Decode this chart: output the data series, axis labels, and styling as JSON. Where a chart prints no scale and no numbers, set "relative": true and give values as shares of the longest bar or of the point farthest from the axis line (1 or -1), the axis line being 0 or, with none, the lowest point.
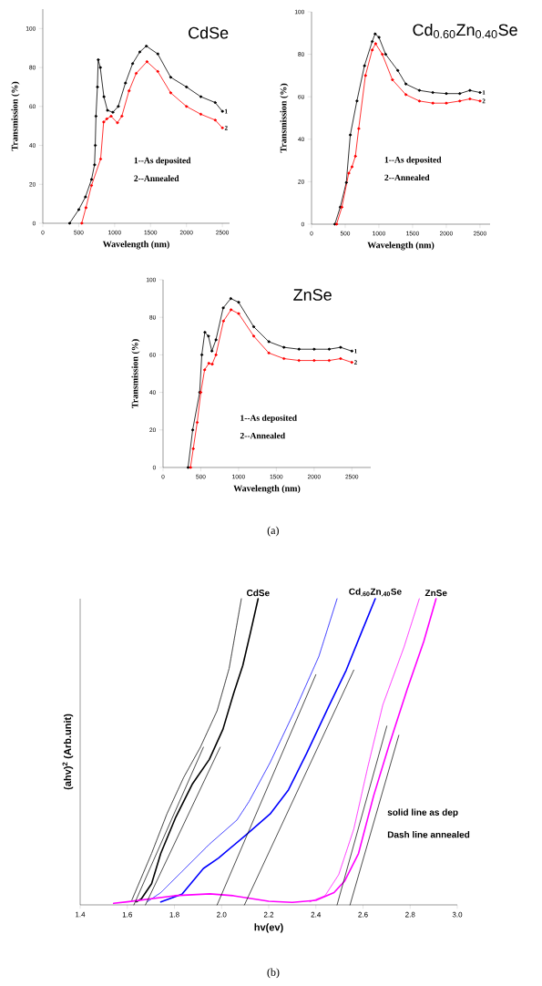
{
  "chart_data": [
    {
      "type": "line",
      "title": "CdSe",
      "xlabel": "Wavelength (nm)",
      "ylabel": "Transmission (%)",
      "marker": "circle",
      "line_style": "solid",
      "xlim": [
        0,
        2600
      ],
      "ylim": [
        0,
        110
      ],
      "xticks": [
        0,
        500,
        1000,
        1500,
        2000,
        2500
      ],
      "yticks": [
        0,
        20,
        40,
        60,
        80,
        100
      ],
      "annotations": [
        "1--As deposited",
        "2--Annealed"
      ],
      "series": [
        {
          "name": "1",
          "color": "#000000",
          "x": [
            373,
            500,
            593,
            678,
            720,
            730,
            740,
            760,
            771,
            800,
            850,
            900,
            975,
            1050,
            1150,
            1250,
            1350,
            1441,
            1600,
            1780,
            2000,
            2200,
            2400,
            2500
          ],
          "values": [
            0,
            7,
            13.5,
            22.5,
            30,
            40,
            55,
            70,
            84,
            80,
            65,
            58,
            57,
            60,
            72,
            82,
            88,
            91,
            87,
            75,
            70,
            65,
            62,
            57.5
          ]
        },
        {
          "name": "2",
          "color": "#ff0000",
          "x": [
            542,
            600,
            678,
            805,
            847,
            890,
            950,
            1038,
            1100,
            1200,
            1300,
            1450,
            1600,
            1780,
            2000,
            2200,
            2400,
            2500
          ],
          "values": [
            0,
            8,
            19.4,
            33,
            52,
            53.6,
            55,
            51.6,
            55,
            68,
            77,
            83,
            78,
            67,
            60,
            56,
            53,
            49
          ]
        }
      ]
    },
    {
      "type": "line",
      "title": "Cd$_{0.60}$Zn$_{0.40}$Se",
      "xlabel": "Wavelength (nm)",
      "ylabel": "Transmission (%)",
      "marker": "circle",
      "line_style": "solid",
      "xlim": [
        0,
        2650
      ],
      "ylim": [
        0,
        100
      ],
      "xticks": [
        0,
        500,
        1000,
        1500,
        2000,
        2500
      ],
      "yticks": [
        0,
        20,
        40,
        60,
        80,
        100
      ],
      "annotations": [
        "1--As deposited",
        "2--Annealed"
      ],
      "series": [
        {
          "name": "1",
          "color": "#000000",
          "x": [
            346,
            426,
            516,
            575,
            673,
            785,
            900,
            943,
            1000,
            1100,
            1279,
            1400,
            1600,
            1800,
            2000,
            2200,
            2350,
            2500
          ],
          "values": [
            0,
            8,
            19.6,
            42,
            58,
            74.6,
            86,
            89.6,
            88,
            80,
            72.4,
            66,
            63,
            62,
            61.5,
            61.5,
            63,
            62
          ]
        },
        {
          "name": "2",
          "color": "#ff0000",
          "x": [
            372,
            450,
            552,
            600,
            651,
            700,
            800,
            900,
            950,
            1050,
            1200,
            1400,
            1600,
            1800,
            2000,
            2200,
            2350,
            2500
          ],
          "values": [
            0,
            8,
            24,
            27,
            32,
            45,
            70,
            82,
            85,
            80,
            68,
            61,
            58,
            57,
            57,
            58,
            59,
            58
          ]
        }
      ]
    },
    {
      "type": "line",
      "title": "ZnSe",
      "xlabel": "Wavelength (nm)",
      "ylabel": "Transmission (%)",
      "marker": "circle",
      "line_style": "solid",
      "xlim": [
        0,
        2750
      ],
      "ylim": [
        0,
        100
      ],
      "xticks": [
        0,
        500,
        1000,
        1500,
        2000,
        2500
      ],
      "yticks": [
        0,
        20,
        40,
        60,
        80,
        100
      ],
      "annotations": [
        "1--As deposited",
        "2--Annealed",
        "(a)"
      ],
      "series": [
        {
          "name": "1",
          "color": "#000000",
          "x": [
            331,
            392,
            485,
            513,
            553,
            600,
            646,
            700,
            796,
            897,
            1000,
            1200,
            1400,
            1600,
            1800,
            2000,
            2200,
            2350,
            2500
          ],
          "values": [
            0,
            20,
            40,
            60,
            72,
            70,
            62,
            68,
            85,
            90,
            88,
            75,
            67,
            64,
            63,
            63,
            63,
            64,
            62
          ]
        },
        {
          "name": "2",
          "color": "#ff0000",
          "x": [
            363,
            400,
            452,
            500,
            550,
            606,
            650,
            700,
            800,
            900,
            1000,
            1200,
            1400,
            1600,
            1800,
            2000,
            2200,
            2350,
            2500
          ],
          "values": [
            0,
            10,
            24,
            40,
            52,
            55.5,
            55,
            60,
            78,
            84,
            82,
            70,
            61,
            58,
            57,
            57,
            57,
            58,
            56
          ]
        }
      ]
    },
    {
      "type": "line",
      "xlabel": "hv(ev)",
      "ylabel": "(ahv)$^{2}$ (Arb.unit)",
      "relative": true,
      "xlim": [
        1.4,
        3.0
      ],
      "xticks": [
        1.4,
        1.6,
        1.8,
        {
          "value": 2.0,
          "label": "2.0"
        },
        2.2,
        2.4,
        2.6,
        2.8,
        {
          "value": 3.0,
          "label": "3.0"
        }
      ],
      "annotations": [
        "solid line as dep",
        "Dash line annealed",
        "(b)"
      ],
      "series": [
        {
          "name": "CdSe",
          "color": "#000000",
          "line_style": "solid",
          "x": [
            1.639,
            1.66,
            1.703,
            1.742,
            1.806,
            1.877,
            1.948,
            2.006,
            2.052,
            2.09,
            2.123,
            2.155
          ],
          "values": [
            0.01,
            0.02,
            0.069,
            0.168,
            0.287,
            0.396,
            0.475,
            0.574,
            0.693,
            0.782,
            0.891,
            1.0
          ]
        },
        {
          "color": "#000000",
          "line_style": "dotted",
          "x": [
            1.619,
            1.703,
            1.768,
            1.839,
            1.91,
            1.981,
            2.032,
            2.084
          ],
          "values": [
            0.015,
            0.168,
            0.297,
            0.416,
            0.515,
            0.634,
            0.772,
            1.0
          ]
        },
        {
          "name": "Cd$_{.60}$Zn$_{.40}$Se",
          "color": "#0000ff",
          "line_style": "solid",
          "x": [
            1.742,
            1.832,
            1.923,
            1.987,
            2.103,
            2.206,
            2.284,
            2.361,
            2.452,
            2.529,
            2.594,
            2.652
          ],
          "values": [
            0.01,
            0.035,
            0.119,
            0.153,
            0.228,
            0.297,
            0.376,
            0.495,
            0.644,
            0.767,
            0.891,
            1.0
          ]
        },
        {
          "color": "#0000ff",
          "line_style": "dotted",
          "x": [
            1.684,
            1.742,
            1.845,
            1.948,
            2.065,
            2.116,
            2.206,
            2.31,
            2.413,
            2.49
          ],
          "values": [
            0.01,
            0.04,
            0.119,
            0.198,
            0.277,
            0.337,
            0.465,
            0.634,
            0.812,
            1.0
          ]
        },
        {
          "name": "ZnSe",
          "color": "#ff00ff",
          "line_style": "solid",
          "x": [
            1.542,
            1.6,
            1.7,
            1.8,
            1.95,
            2.05,
            2.2,
            2.3,
            2.4,
            2.477,
            2.523,
            2.581,
            2.645,
            2.71,
            2.787,
            2.858,
            2.91
          ],
          "values": [
            0.005,
            0.01,
            0.02,
            0.03,
            0.036,
            0.03,
            0.012,
            0.008,
            0.015,
            0.04,
            0.079,
            0.168,
            0.356,
            0.52,
            0.703,
            0.861,
            1.0
          ]
        },
        {
          "color": "#ff00ff",
          "line_style": "dotted",
          "x": [
            2.374,
            2.439,
            2.497,
            2.561,
            2.619,
            2.684,
            2.774,
            2.839
          ],
          "values": [
            0.01,
            0.03,
            0.099,
            0.248,
            0.446,
            0.653,
            0.842,
            1.0
          ]
        },
        {
          "color": "#000000",
          "line_style": "solid",
          "x": [
            1.628,
            1.923
          ],
          "values": [
            0,
            0.515
          ]
        },
        {
          "color": "#000000",
          "line_style": "solid",
          "x": [
            1.677,
            1.994
          ],
          "values": [
            0,
            0.515
          ]
        },
        {
          "color": "#000000",
          "line_style": "solid",
          "x": [
            1.981,
            2.4
          ],
          "values": [
            0,
            0.752
          ]
        },
        {
          "color": "#000000",
          "line_style": "solid",
          "x": [
            2.097,
            2.561
          ],
          "values": [
            0,
            0.767
          ]
        },
        {
          "color": "#000000",
          "line_style": "solid",
          "x": [
            2.49,
            2.701
          ],
          "values": [
            0,
            0.584
          ]
        },
        {
          "color": "#000000",
          "line_style": "solid",
          "x": [
            2.545,
            2.752
          ],
          "values": [
            0,
            0.554
          ]
        }
      ]
    }
  ]
}
